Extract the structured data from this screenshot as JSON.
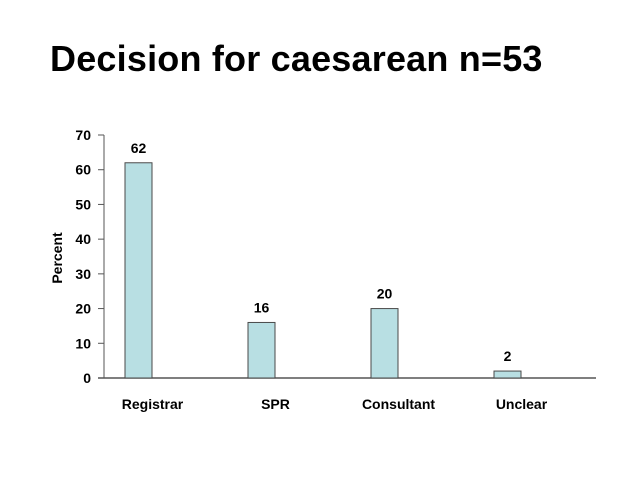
{
  "title": "Decision for caesarean n=53",
  "colors": {
    "bar_fill": "#b8dfe3",
    "bar_stroke": "#4a4a4a",
    "axis": "#555555"
  },
  "chart_data": {
    "type": "bar",
    "title": "Decision for caesarean n=53",
    "xlabel": "",
    "ylabel": "Percent",
    "categories": [
      "Registrar",
      "SPR",
      "Consultant",
      "Unclear"
    ],
    "values": [
      62,
      16,
      20,
      2
    ],
    "ylim": [
      0,
      70
    ],
    "yticks": [
      0,
      10,
      20,
      30,
      40,
      50,
      60,
      70
    ],
    "data_labels": [
      "62",
      "16",
      "20",
      "2"
    ],
    "grid": false,
    "legend": null
  }
}
